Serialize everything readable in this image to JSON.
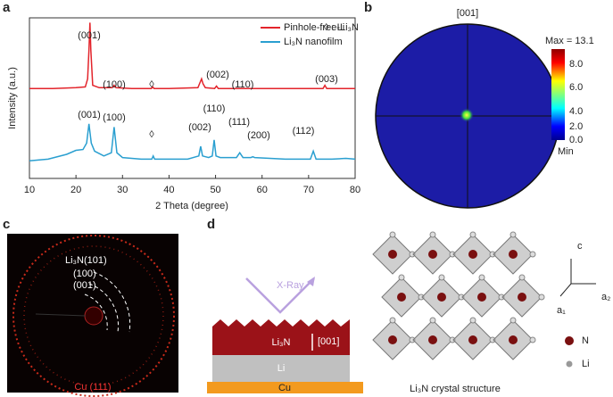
{
  "panel_letters": [
    "a",
    "b",
    "c",
    "d"
  ],
  "chart_data": {
    "type": "line",
    "x_label": "2 Theta (degree)",
    "y_label": "Intensity (a.u.)",
    "xlim": [
      10,
      80
    ],
    "xticks": [
      10,
      20,
      30,
      40,
      50,
      60,
      70,
      80
    ],
    "ylim": [
      0,
      100
    ],
    "series": [
      {
        "name": "Pinhole-free-Li₃N",
        "color": "#e3242b",
        "x": [
          10,
          15,
          20,
          22,
          22.5,
          22.8,
          23.0,
          23.2,
          23.6,
          25,
          27.8,
          28.2,
          28.6,
          32,
          36.2,
          36.5,
          36.8,
          40,
          46.2,
          46.7,
          47,
          47.3,
          47.8,
          49.8,
          50.2,
          50.6,
          60,
          73.1,
          73.5,
          73.9,
          80
        ],
        "values": [
          56,
          56,
          56.5,
          57,
          62,
          80,
          97,
          80,
          58,
          56.5,
          56.5,
          58,
          56.5,
          56,
          56,
          57,
          56,
          56,
          56.5,
          60,
          62,
          59,
          56.5,
          56,
          57.5,
          56,
          56,
          56,
          58,
          56,
          56
        ]
      },
      {
        "name": "Li₃N nanofilm",
        "color": "#2a9fd0",
        "x": [
          10,
          14,
          18,
          20,
          21.5,
          22.3,
          22.8,
          23.3,
          24,
          26,
          27.6,
          28.2,
          28.8,
          30,
          34,
          36.3,
          36.6,
          36.9,
          40,
          44,
          46.4,
          46.8,
          47.2,
          48.5,
          49.3,
          49.7,
          50.1,
          51,
          54.5,
          55.2,
          55.9,
          57.6,
          58,
          58.4,
          65,
          70.4,
          71,
          71.6,
          75,
          78,
          80
        ],
        "values": [
          11,
          12,
          15,
          17.5,
          18,
          22,
          34,
          22,
          17,
          14,
          16,
          32,
          16,
          13,
          12,
          12,
          14,
          12,
          12,
          12,
          14,
          20,
          14,
          13,
          14,
          24,
          14,
          13,
          13,
          16,
          13,
          13,
          13.5,
          13,
          12,
          12,
          17,
          12,
          12,
          12.5,
          12
        ]
      }
    ],
    "legend_extra": "◊ : Li",
    "annotations": [
      "(001)",
      "(100)",
      "◊",
      "(002)",
      "(110)",
      "(003)",
      "(001)",
      "(100)",
      "◊",
      "(002)",
      "(110)",
      "(111)",
      "(200)",
      "(112)"
    ]
  },
  "pole_figure": {
    "title": "[001]",
    "max_label": "Max = 13.1",
    "colorbar_labels": [
      "8.0",
      "6.0",
      "4.0",
      "2.0",
      "0.0"
    ],
    "min_label": "Min"
  },
  "diffraction": {
    "labels": [
      "Li₃N(101)",
      "(100)",
      "(001)",
      "Cu (111)"
    ]
  },
  "schematic": {
    "xray": "X-Ray",
    "film": "Li₃N",
    "direction": "[001]",
    "li": "Li",
    "cu": "Cu",
    "caption": "Li₃N crystal structure",
    "axes": [
      "c",
      "a₂",
      "a₁"
    ],
    "legend": [
      "N",
      "Li"
    ]
  }
}
